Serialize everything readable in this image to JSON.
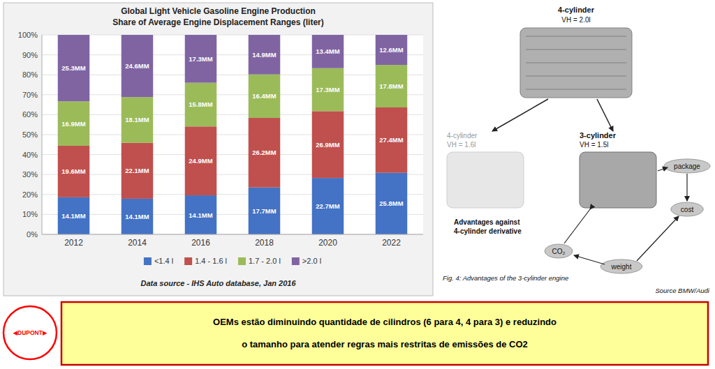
{
  "chart_data": {
    "type": "bar",
    "title": "Global Light Vehicle Gasoline Engine Production",
    "subtitle": "Share of Average Engine Displacement Ranges (liter)",
    "source": "Data source  - IHS Auto database,  Jan 2016",
    "categories": [
      "2012",
      "2014",
      "2016",
      "2018",
      "2020",
      "2022"
    ],
    "stacked": true,
    "grid": true,
    "legend": "bottom",
    "ylim": [
      0,
      100
    ],
    "yticks": [
      {
        "value": 0,
        "label": "0%"
      },
      {
        "value": 10,
        "label": "10%"
      },
      {
        "value": 20,
        "label": "20%"
      },
      {
        "value": 30,
        "label": "30%"
      },
      {
        "value": 40,
        "label": "40%"
      },
      {
        "value": 50,
        "label": "50%"
      },
      {
        "value": 60,
        "label": "60%"
      },
      {
        "value": 70,
        "label": "70%"
      },
      {
        "value": 80,
        "label": "80%"
      },
      {
        "value": 90,
        "label": "90%"
      },
      {
        "value": 100,
        "label": "100%"
      }
    ],
    "series": [
      {
        "name": "<1.4 l",
        "color": "#4472C4",
        "values": [
          18.58,
          17.87,
          19.56,
          23.54,
          28.27,
          30.86
        ],
        "volumes": [
          14.1,
          14.1,
          14.1,
          17.7,
          22.7,
          25.8
        ],
        "volume_labels": [
          "14.1MM",
          "14.1MM",
          "14.1MM",
          "17.7MM",
          "22.7MM",
          "25.8MM"
        ]
      },
      {
        "name": "1.4 - 1.6 l",
        "color": "#C0504D",
        "values": [
          25.82,
          28.01,
          34.54,
          34.84,
          33.5,
          32.78
        ],
        "volumes": [
          19.6,
          22.1,
          24.9,
          26.2,
          26.9,
          27.4
        ],
        "volume_labels": [
          "19.6MM",
          "22.1MM",
          "24.9MM",
          "26.2MM",
          "26.9MM",
          "27.4MM"
        ]
      },
      {
        "name": "1.7 - 2.0 l",
        "color": "#9BBB59",
        "values": [
          22.27,
          22.94,
          21.91,
          21.81,
          21.54,
          21.29
        ],
        "volumes": [
          16.9,
          18.1,
          15.8,
          16.4,
          17.3,
          17.8
        ],
        "volume_labels": [
          "16.9MM",
          "18.1MM",
          "15.8MM",
          "16.4MM",
          "17.3MM",
          "17.8MM"
        ]
      },
      {
        "name": ">2.0 l",
        "color": "#8064A2",
        "values": [
          33.33,
          31.18,
          23.99,
          19.81,
          16.69,
          15.07
        ],
        "volumes": [
          25.3,
          24.6,
          17.3,
          14.9,
          13.4,
          12.6
        ],
        "volume_labels": [
          "25.3MM",
          "24.6MM",
          "17.3MM",
          "14.9MM",
          "13.4MM",
          "12.6MM"
        ]
      }
    ]
  },
  "diagram": {
    "top_engine": "4-cylinder",
    "top_engine_volume": "VH = 2.0l",
    "left_engine": "4-cylinder",
    "left_engine_volume": "VH = 1.6l",
    "right_engine": "3-cylinder",
    "right_engine_volume": "VH = 1.5l",
    "advantages": [
      "Advantages against",
      "4-cylinder derivative"
    ],
    "factors": [
      "package",
      "cost",
      "CO₂",
      "weight"
    ],
    "caption": "Fig. 4: Advantages of the 3-cylinder engine",
    "source": "Source BMW/Audi"
  },
  "banner": {
    "lines": [
      "OEMs estão diminuindo quantidade de cilindros (6 para 4, 4 para 3) e reduzindo",
      "o tamanho para atender regras mais restritas de emissões de CO2"
    ],
    "logo": "◀DUPONT▶"
  }
}
